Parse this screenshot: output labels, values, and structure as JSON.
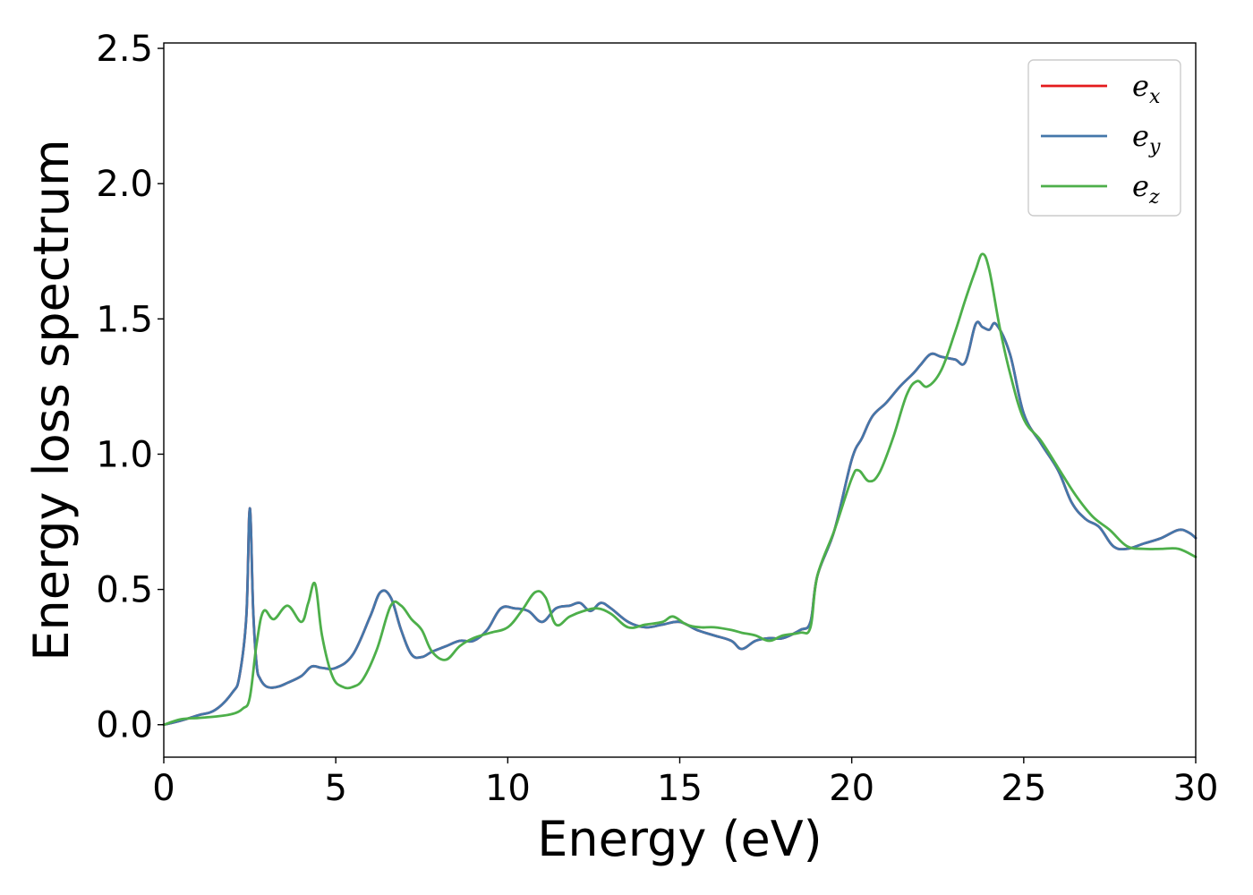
{
  "chart_data": {
    "type": "line",
    "title": "",
    "xlabel": "Energy (eV)",
    "ylabel": "Energy loss spectrum",
    "xlim": [
      0,
      30
    ],
    "ylim": [
      -0.12,
      2.52
    ],
    "xticks": [
      0,
      5,
      10,
      15,
      20,
      25,
      30
    ],
    "xtick_labels": [
      "0",
      "5",
      "10",
      "15",
      "20",
      "25",
      "30"
    ],
    "yticks": [
      0.0,
      0.5,
      1.0,
      1.5,
      2.0,
      2.5
    ],
    "ytick_labels": [
      "0.0",
      "0.5",
      "1.0",
      "1.5",
      "2.0",
      "2.5"
    ],
    "grid": false,
    "legend_position": "top-right",
    "series": [
      {
        "name": "e_x",
        "legend_base": "e",
        "legend_sub": "x",
        "color": "#e41a1c",
        "x": [
          0,
          0.5,
          1,
          1.5,
          2,
          2.2,
          2.4,
          2.5,
          2.6,
          2.7,
          2.8,
          3.0,
          3.3,
          3.6,
          4.0,
          4.3,
          4.6,
          5.0,
          5.5,
          6.0,
          6.3,
          6.6,
          6.9,
          7.2,
          7.5,
          7.8,
          8.2,
          8.6,
          9.0,
          9.4,
          9.8,
          10.2,
          10.6,
          11.0,
          11.4,
          11.8,
          12.1,
          12.4,
          12.7,
          13.0,
          13.5,
          14.0,
          14.5,
          15.0,
          15.5,
          16.0,
          16.5,
          16.8,
          17.2,
          17.6,
          18.0,
          18.5,
          18.8,
          19.0,
          19.5,
          20.0,
          20.3,
          20.6,
          21.0,
          21.4,
          21.8,
          22.0,
          22.3,
          22.6,
          23.0,
          23.3,
          23.6,
          23.8,
          24.0,
          24.2,
          24.6,
          25.0,
          25.5,
          26.0,
          26.4,
          26.8,
          27.2,
          27.6,
          28.0,
          28.5,
          29.0,
          29.5,
          29.8,
          30.0
        ],
        "y": [
          0.0,
          0.015,
          0.035,
          0.055,
          0.12,
          0.18,
          0.4,
          0.8,
          0.42,
          0.22,
          0.17,
          0.14,
          0.14,
          0.155,
          0.18,
          0.215,
          0.21,
          0.21,
          0.26,
          0.4,
          0.49,
          0.47,
          0.35,
          0.26,
          0.25,
          0.27,
          0.29,
          0.31,
          0.31,
          0.35,
          0.43,
          0.43,
          0.42,
          0.38,
          0.43,
          0.44,
          0.45,
          0.42,
          0.45,
          0.43,
          0.38,
          0.36,
          0.37,
          0.38,
          0.35,
          0.33,
          0.31,
          0.28,
          0.31,
          0.32,
          0.32,
          0.35,
          0.38,
          0.55,
          0.72,
          0.98,
          1.06,
          1.14,
          1.19,
          1.25,
          1.3,
          1.33,
          1.37,
          1.36,
          1.35,
          1.34,
          1.48,
          1.47,
          1.46,
          1.48,
          1.37,
          1.15,
          1.04,
          0.94,
          0.82,
          0.76,
          0.73,
          0.66,
          0.65,
          0.67,
          0.69,
          0.72,
          0.71,
          0.69
        ]
      },
      {
        "name": "e_y",
        "legend_base": "e",
        "legend_sub": "y",
        "color": "#4477aa",
        "x": [
          0,
          0.5,
          1,
          1.5,
          2,
          2.2,
          2.4,
          2.5,
          2.6,
          2.7,
          2.8,
          3.0,
          3.3,
          3.6,
          4.0,
          4.3,
          4.6,
          5.0,
          5.5,
          6.0,
          6.3,
          6.6,
          6.9,
          7.2,
          7.5,
          7.8,
          8.2,
          8.6,
          9.0,
          9.4,
          9.8,
          10.2,
          10.6,
          11.0,
          11.4,
          11.8,
          12.1,
          12.4,
          12.7,
          13.0,
          13.5,
          14.0,
          14.5,
          15.0,
          15.5,
          16.0,
          16.5,
          16.8,
          17.2,
          17.6,
          18.0,
          18.5,
          18.8,
          19.0,
          19.5,
          20.0,
          20.3,
          20.6,
          21.0,
          21.4,
          21.8,
          22.0,
          22.3,
          22.6,
          23.0,
          23.3,
          23.6,
          23.8,
          24.0,
          24.2,
          24.6,
          25.0,
          25.5,
          26.0,
          26.4,
          26.8,
          27.2,
          27.6,
          28.0,
          28.5,
          29.0,
          29.5,
          29.8,
          30.0
        ],
        "y": [
          0.0,
          0.015,
          0.035,
          0.055,
          0.12,
          0.18,
          0.4,
          0.8,
          0.42,
          0.22,
          0.17,
          0.14,
          0.14,
          0.155,
          0.18,
          0.215,
          0.21,
          0.21,
          0.26,
          0.4,
          0.49,
          0.47,
          0.35,
          0.26,
          0.25,
          0.27,
          0.29,
          0.31,
          0.31,
          0.35,
          0.43,
          0.43,
          0.42,
          0.38,
          0.43,
          0.44,
          0.45,
          0.42,
          0.45,
          0.43,
          0.38,
          0.36,
          0.37,
          0.38,
          0.35,
          0.33,
          0.31,
          0.28,
          0.31,
          0.32,
          0.32,
          0.35,
          0.38,
          0.55,
          0.72,
          0.98,
          1.06,
          1.14,
          1.19,
          1.25,
          1.3,
          1.33,
          1.37,
          1.36,
          1.35,
          1.34,
          1.48,
          1.47,
          1.46,
          1.48,
          1.37,
          1.15,
          1.04,
          0.94,
          0.82,
          0.76,
          0.73,
          0.66,
          0.65,
          0.67,
          0.69,
          0.72,
          0.71,
          0.69
        ]
      },
      {
        "name": "e_z",
        "legend_base": "e",
        "legend_sub": "z",
        "color": "#4daf4a",
        "x": [
          0,
          0.5,
          1,
          1.5,
          2,
          2.3,
          2.5,
          2.7,
          2.9,
          3.2,
          3.6,
          4.0,
          4.2,
          4.4,
          4.6,
          4.9,
          5.2,
          5.5,
          5.8,
          6.2,
          6.6,
          6.9,
          7.2,
          7.5,
          7.8,
          8.2,
          8.6,
          9.0,
          9.5,
          10.0,
          10.4,
          10.8,
          11.1,
          11.4,
          11.8,
          12.2,
          12.6,
          13.0,
          13.5,
          14.0,
          14.5,
          14.8,
          15.2,
          15.6,
          16.0,
          16.5,
          16.8,
          17.2,
          17.6,
          18.0,
          18.5,
          18.8,
          19.0,
          19.5,
          20.0,
          20.2,
          20.5,
          20.8,
          21.2,
          21.6,
          21.9,
          22.2,
          22.6,
          23.0,
          23.3,
          23.6,
          23.8,
          24.0,
          24.3,
          24.6,
          25.0,
          25.5,
          26.0,
          26.5,
          27.0,
          27.5,
          28.0,
          28.5,
          29.0,
          29.5,
          30.0
        ],
        "y": [
          0.0,
          0.02,
          0.025,
          0.03,
          0.04,
          0.06,
          0.1,
          0.3,
          0.42,
          0.39,
          0.44,
          0.38,
          0.45,
          0.52,
          0.33,
          0.18,
          0.14,
          0.14,
          0.17,
          0.28,
          0.44,
          0.44,
          0.39,
          0.35,
          0.27,
          0.24,
          0.29,
          0.32,
          0.34,
          0.36,
          0.42,
          0.49,
          0.47,
          0.37,
          0.4,
          0.42,
          0.43,
          0.41,
          0.36,
          0.37,
          0.38,
          0.4,
          0.37,
          0.36,
          0.36,
          0.35,
          0.34,
          0.33,
          0.31,
          0.33,
          0.34,
          0.36,
          0.55,
          0.72,
          0.91,
          0.94,
          0.9,
          0.93,
          1.06,
          1.22,
          1.27,
          1.25,
          1.31,
          1.45,
          1.57,
          1.68,
          1.74,
          1.68,
          1.47,
          1.3,
          1.13,
          1.05,
          0.95,
          0.85,
          0.77,
          0.72,
          0.66,
          0.65,
          0.65,
          0.65,
          0.62
        ]
      }
    ]
  }
}
